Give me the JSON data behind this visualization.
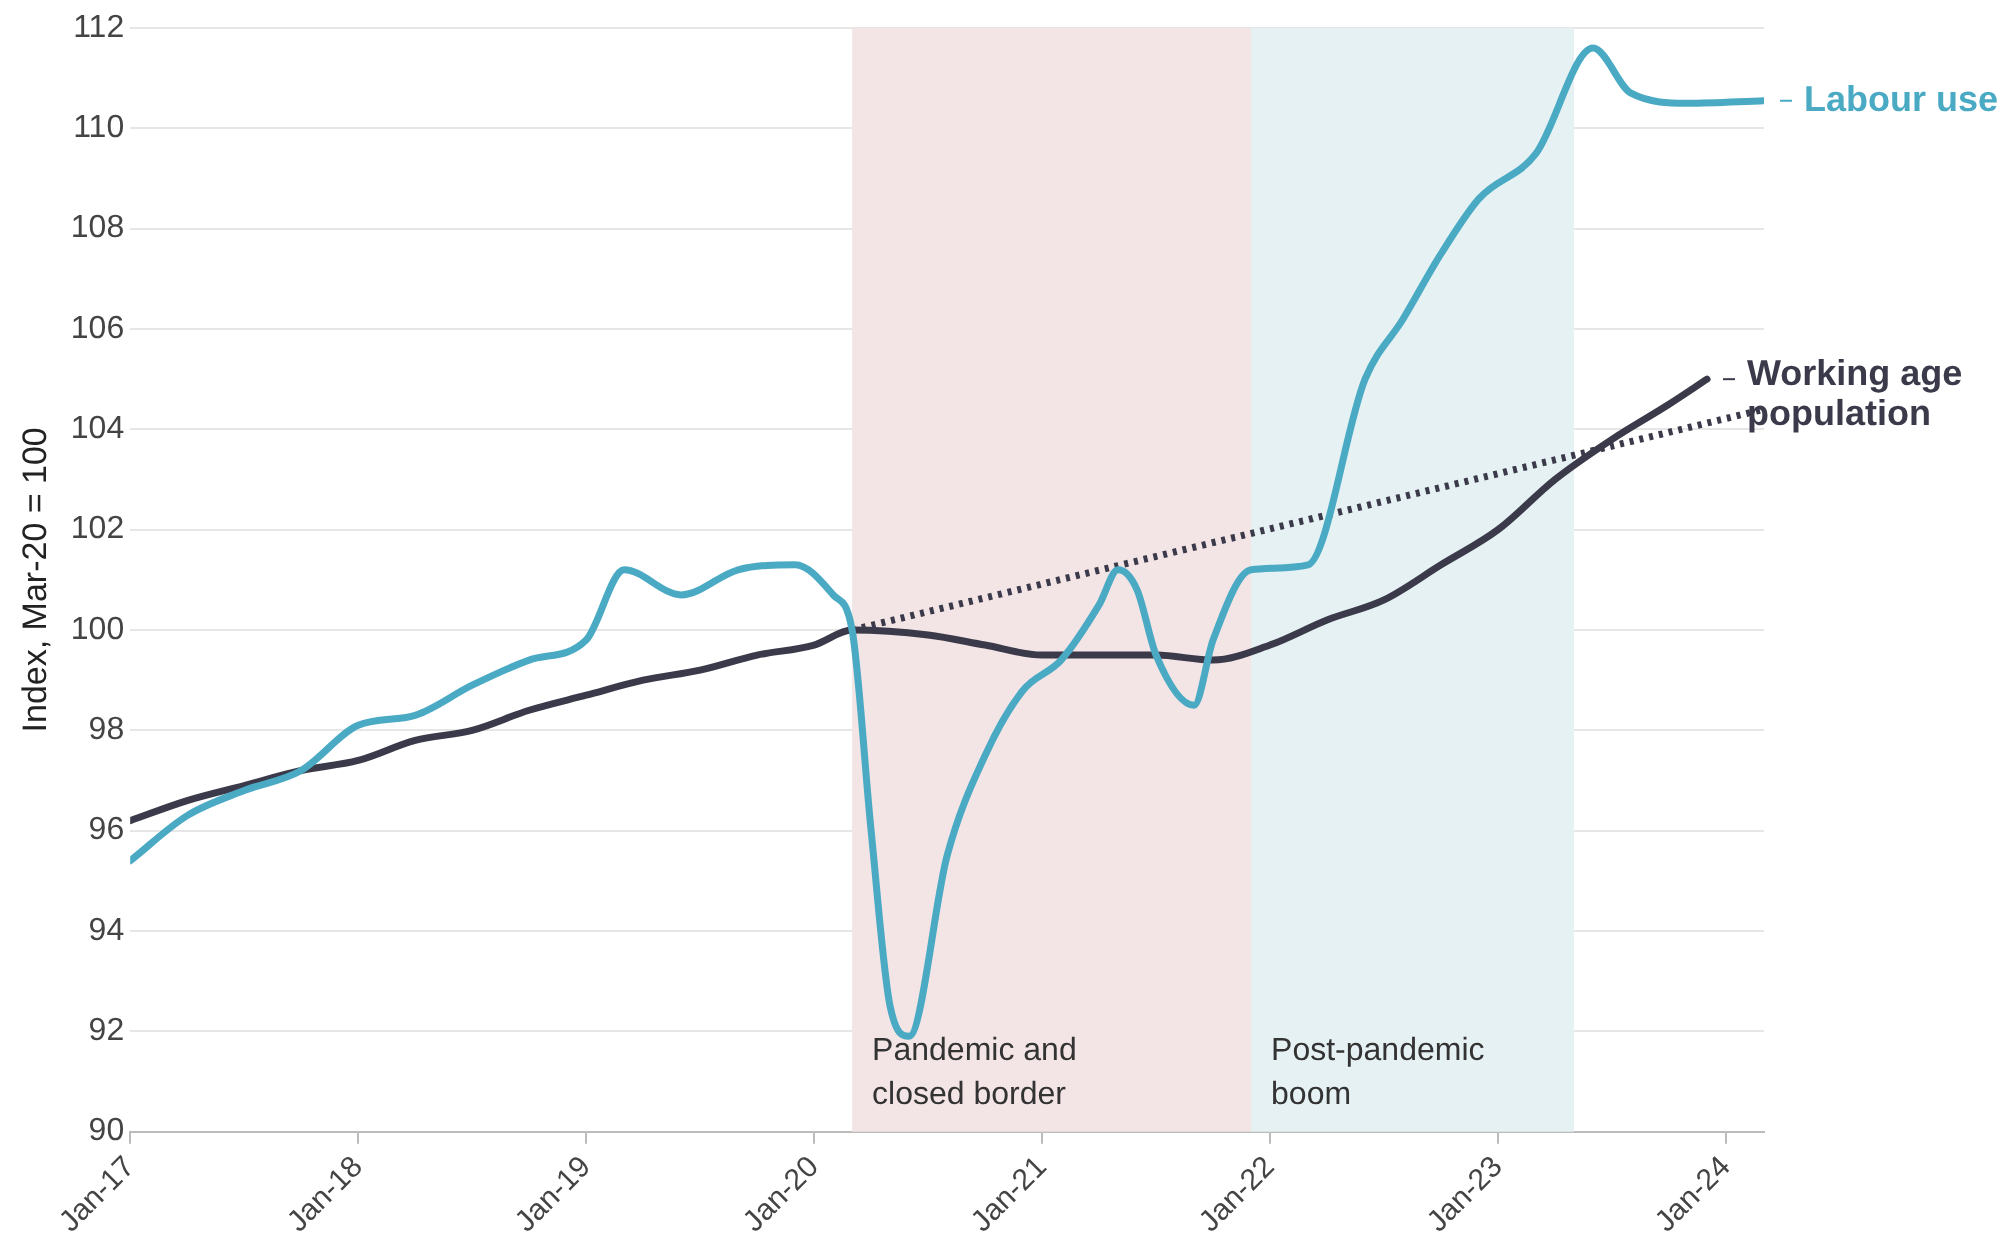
{
  "chart_data": {
    "type": "line",
    "ylabel": "Index, Mar-20 = 100",
    "xlim": [
      "2017-01",
      "2024-03"
    ],
    "xticks": [
      {
        "value": "2017-01",
        "label": "Jan-17"
      },
      {
        "value": "2018-01",
        "label": "Jan-18"
      },
      {
        "value": "2019-01",
        "label": "Jan-19"
      },
      {
        "value": "2020-01",
        "label": "Jan-20"
      },
      {
        "value": "2021-01",
        "label": "Jan-21"
      },
      {
        "value": "2022-01",
        "label": "Jan-22"
      },
      {
        "value": "2023-01",
        "label": "Jan-23"
      },
      {
        "value": "2024-01",
        "label": "Jan-24"
      }
    ],
    "ylim": [
      90,
      112
    ],
    "yticks": [
      90,
      92,
      94,
      96,
      98,
      100,
      102,
      104,
      106,
      108,
      110,
      112
    ],
    "grid": "y",
    "legend": "right",
    "marker": "none",
    "line_style": "solid",
    "bands": [
      {
        "axis": "x",
        "from": "2020-03",
        "to": "2021-12",
        "label": "Pandemic and closed border",
        "color": "#f3e5e5"
      },
      {
        "axis": "x",
        "from": "2021-12",
        "to": "2023-05",
        "label": "Post-pandemic boom",
        "color": "#e5f1f2"
      }
    ],
    "series": [
      {
        "name": "Labour use",
        "color": "#4aaac4",
        "x": [
          "2017-01",
          "2017-04",
          "2017-07",
          "2017-10",
          "2018-01",
          "2018-04",
          "2018-07",
          "2018-10",
          "2019-01",
          "2019-03",
          "2019-06",
          "2019-09",
          "2019-12",
          "2020-02",
          "2020-03",
          "2020-04",
          "2020-05",
          "2020-06",
          "2020-08",
          "2020-10",
          "2020-12",
          "2021-02",
          "2021-04",
          "2021-05",
          "2021-06",
          "2021-07",
          "2021-09",
          "2021-10",
          "2021-12",
          "2022-03",
          "2022-06",
          "2022-08",
          "2022-10",
          "2022-12",
          "2023-03",
          "2023-06",
          "2023-08",
          "2023-11",
          "2024-03"
        ],
        "values": [
          95.4,
          96.3,
          96.8,
          97.2,
          98.1,
          98.3,
          98.9,
          99.4,
          99.8,
          101.2,
          100.7,
          101.2,
          101.3,
          100.7,
          100.0,
          96.0,
          92.5,
          91.9,
          95.5,
          97.5,
          98.8,
          99.4,
          100.5,
          101.2,
          100.8,
          99.5,
          98.5,
          99.8,
          101.2,
          101.3,
          105.0,
          106.2,
          107.5,
          108.6,
          109.5,
          111.6,
          110.7,
          110.5,
          110.55
        ]
      },
      {
        "name": "Working age population",
        "color": "#3b3a4a",
        "x": [
          "2017-01",
          "2017-04",
          "2017-07",
          "2017-10",
          "2018-01",
          "2018-04",
          "2018-07",
          "2018-10",
          "2019-01",
          "2019-04",
          "2019-07",
          "2019-10",
          "2020-01",
          "2020-03",
          "2020-07",
          "2020-10",
          "2021-01",
          "2021-04",
          "2021-07",
          "2021-10",
          "2022-01",
          "2022-04",
          "2022-07",
          "2022-10",
          "2023-01",
          "2023-04",
          "2023-07",
          "2023-10",
          "2023-12"
        ],
        "values": [
          96.2,
          96.6,
          96.9,
          97.2,
          97.4,
          97.8,
          98.0,
          98.4,
          98.7,
          99.0,
          99.2,
          99.5,
          99.7,
          100.0,
          99.9,
          99.7,
          99.5,
          99.5,
          99.5,
          99.4,
          99.7,
          100.2,
          100.6,
          101.3,
          102.0,
          103.0,
          103.8,
          104.5,
          105.0
        ]
      },
      {
        "color": "#3b3a4a",
        "line_style": "dotted",
        "x": [
          "2020-03",
          "2024-03"
        ],
        "values": [
          100.0,
          104.4
        ]
      }
    ]
  }
}
